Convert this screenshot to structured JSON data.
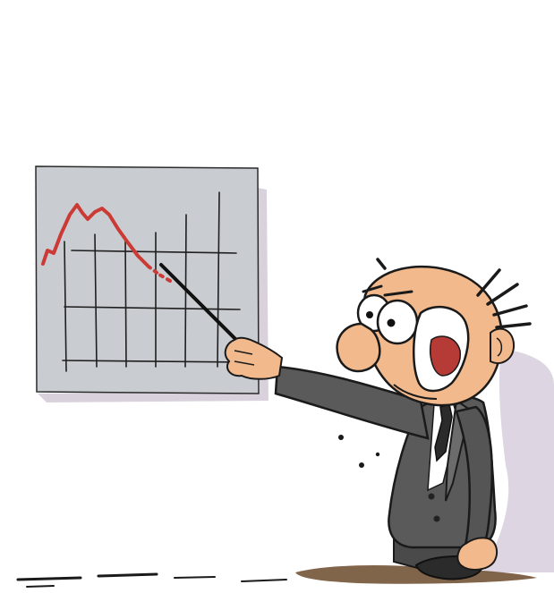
{
  "scene": {
    "colors": {
      "background": "#ffffff",
      "board": "#c9cdd1",
      "board_shadow": "#d9d2dc",
      "wall_shadow": "#ddd6e2",
      "grid": "#1f1f1f",
      "trend_line": "#cc3a35",
      "suit": "#5a5a5a",
      "suit_light": "#7a7a7a",
      "skin": "#f2b98c",
      "skin_shade": "#d99563",
      "shirt": "#ffffff",
      "tie": "#2b2b2b",
      "outline": "#1a1a1a",
      "mouth": "#b63a36",
      "floor_shadow": "#6b4a2c"
    },
    "icons": [
      "chart-board-icon",
      "declining-trend-line-icon",
      "pointer-stick-icon",
      "presenter-character-icon"
    ]
  }
}
